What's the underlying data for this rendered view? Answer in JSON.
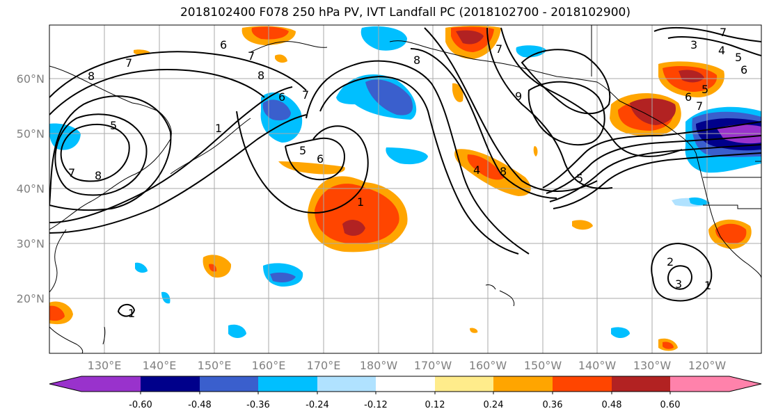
{
  "title": "2018102400 F078 250 hPa PV, IVT Landfall PC (2018102700 - 2018102900)",
  "lat_labels": [
    "60°N",
    "50°N",
    "40°N",
    "30°N",
    "20°N"
  ],
  "lon_labels": [
    "130°E",
    "140°E",
    "150°E",
    "160°E",
    "170°E",
    "180°W",
    "170°W",
    "160°W",
    "150°W",
    "140°W",
    "130°W",
    "120°W"
  ],
  "colorbar": {
    "ticks": [
      "-0.60",
      "-0.48",
      "-0.36",
      "-0.24",
      "-0.12",
      "0.12",
      "0.24",
      "0.36",
      "0.48",
      "0.60"
    ],
    "colors": [
      "#9932cc",
      "#00008b",
      "#3a5fcd",
      "#00bfff",
      "#b0e2ff",
      "#ffffff",
      "#ffec8b",
      "#ffa500",
      "#ff4500",
      "#b22222",
      "#ff82ab"
    ]
  },
  "contour_labels": [
    "6",
    "7",
    "8",
    "7",
    "5",
    "7",
    "8",
    "1",
    "6",
    "7",
    "8",
    "5",
    "6",
    "1",
    "4",
    "8",
    "9",
    "8",
    "7",
    "5",
    "3",
    "4",
    "5",
    "6",
    "5",
    "6",
    "7",
    "2",
    "3",
    "1",
    "1",
    "7"
  ]
}
